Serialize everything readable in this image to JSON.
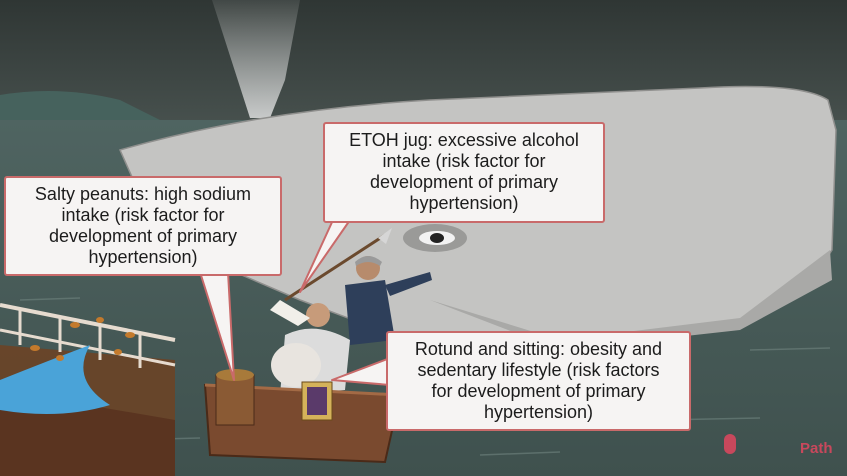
{
  "callouts": {
    "peanuts": "Salty peanuts: high sodium\nintake (risk factor for\ndevelopment of primary\nhypertension)",
    "etoh": "ETOH jug: excessive alcohol\nintake (risk factor for\ndevelopment of primary\nhypertension)",
    "rotund": "Rotund and sitting: obesity and\nsedentary lifestyle (risk factors\nfor development of primary\nhypertension)"
  },
  "logo": {
    "text": "Path",
    "icon": "pathoma-logo-icon",
    "color": "#c8485c"
  },
  "colors": {
    "accent": "#c96a6a",
    "sea": "#4a5d5a",
    "sky": "#3c4442",
    "whale": "#c9c9c9"
  }
}
